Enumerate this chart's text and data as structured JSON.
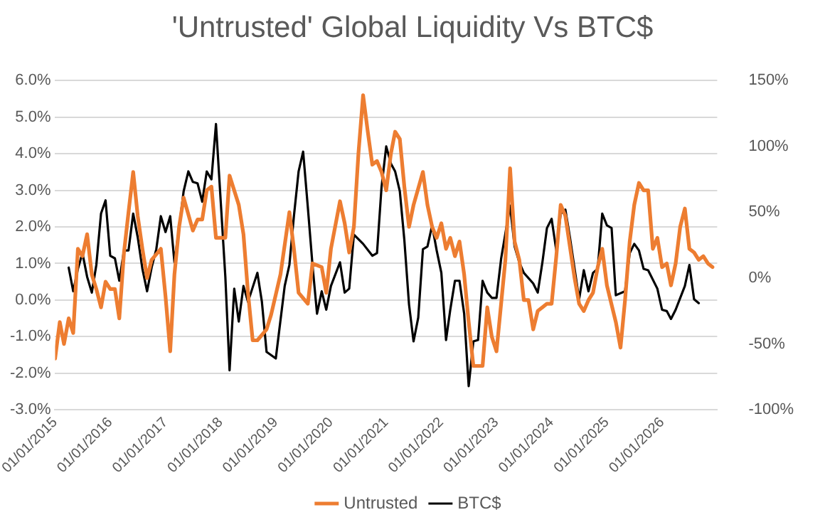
{
  "chart_data": {
    "type": "line",
    "title": "'Untrusted' Global Liquidity Vs BTC$",
    "xlim": [
      "2015-01-01",
      "2027-01-01"
    ],
    "xticks": [
      {
        "value": "2015-01-01",
        "label": "01/01/2015"
      },
      {
        "value": "2016-01-01",
        "label": "01/01/2016"
      },
      {
        "value": "2017-01-01",
        "label": "01/01/2017"
      },
      {
        "value": "2018-01-01",
        "label": "01/01/2018"
      },
      {
        "value": "2019-01-01",
        "label": "01/01/2019"
      },
      {
        "value": "2020-01-01",
        "label": "01/01/2020"
      },
      {
        "value": "2021-01-01",
        "label": "01/01/2021"
      },
      {
        "value": "2022-01-01",
        "label": "01/01/2022"
      },
      {
        "value": "2023-01-01",
        "label": "01/01/2023"
      },
      {
        "value": "2024-01-01",
        "label": "01/01/2024"
      },
      {
        "value": "2025-01-01",
        "label": "01/01/2025"
      },
      {
        "value": "2026-01-01",
        "label": "01/01/2026"
      }
    ],
    "ylim": [
      -3,
      6
    ],
    "yticks": [
      {
        "value": -3,
        "label": "-3.0%"
      },
      {
        "value": -2,
        "label": "-2.0%"
      },
      {
        "value": -1,
        "label": "-1.0%"
      },
      {
        "value": 0,
        "label": "0.0%"
      },
      {
        "value": 1,
        "label": "1.0%"
      },
      {
        "value": 2,
        "label": "2.0%"
      },
      {
        "value": 3,
        "label": "3.0%"
      },
      {
        "value": 4,
        "label": "4.0%"
      },
      {
        "value": 5,
        "label": "5.0%"
      },
      {
        "value": 6,
        "label": "6.0%"
      }
    ],
    "y2lim": [
      -100,
      150
    ],
    "y2ticks": [
      {
        "value": -100,
        "label": "-100%"
      },
      {
        "value": -50,
        "label": "-50%"
      },
      {
        "value": 0,
        "label": "0%"
      },
      {
        "value": 50,
        "label": "50%"
      },
      {
        "value": 100,
        "label": "100%"
      },
      {
        "value": 150,
        "label": "150%"
      }
    ],
    "grid": "y",
    "legend": "bottom",
    "marker": "none",
    "line_style": "solid",
    "series": [
      {
        "name": "Untrusted",
        "color": "#ed7d31",
        "x": [
          "2015-01",
          "2015-02",
          "2015-03",
          "2015-04",
          "2015-05",
          "2015-06",
          "2015-07",
          "2015-08",
          "2015-09",
          "2015-10",
          "2015-11",
          "2015-12",
          "2016-01",
          "2016-02",
          "2016-03",
          "2016-04",
          "2016-05",
          "2016-06",
          "2016-07",
          "2016-08",
          "2016-09",
          "2016-10",
          "2016-12",
          "2017-01",
          "2017-02",
          "2017-03",
          "2017-04",
          "2017-05",
          "2017-07",
          "2017-08",
          "2017-09",
          "2017-10",
          "2017-11",
          "2017-12",
          "2018-02",
          "2018-03",
          "2018-05",
          "2018-06",
          "2018-07",
          "2018-08",
          "2018-09",
          "2018-11",
          "2018-12",
          "2019-02",
          "2019-04",
          "2019-05",
          "2019-06",
          "2019-08",
          "2019-09",
          "2019-11",
          "2019-12",
          "2020-01",
          "2020-03",
          "2020-04",
          "2020-05",
          "2020-06",
          "2020-07",
          "2020-08",
          "2020-09",
          "2020-10",
          "2020-11",
          "2020-12",
          "2021-01",
          "2021-02",
          "2021-03",
          "2021-04",
          "2021-05",
          "2021-06",
          "2021-07",
          "2021-09",
          "2021-10",
          "2021-11",
          "2021-12",
          "2022-01",
          "2022-02",
          "2022-03",
          "2022-04",
          "2022-05",
          "2022-06",
          "2022-07",
          "2022-08",
          "2022-10",
          "2022-11",
          "2022-12",
          "2023-01",
          "2023-03",
          "2023-04",
          "2023-05",
          "2023-06",
          "2023-07",
          "2023-08",
          "2023-09",
          "2023-10",
          "2023-12",
          "2024-01",
          "2024-02",
          "2024-03",
          "2024-04",
          "2024-06",
          "2024-07",
          "2024-08",
          "2024-09",
          "2024-10",
          "2024-11",
          "2024-12",
          "2025-01",
          "2025-03",
          "2025-04",
          "2025-05",
          "2025-06",
          "2025-07",
          "2025-08",
          "2025-09",
          "2025-10",
          "2025-11",
          "2025-12",
          "2026-01",
          "2026-02",
          "2026-03",
          "2026-04",
          "2026-05",
          "2026-06",
          "2026-07",
          "2026-08",
          "2026-09",
          "2026-10",
          "2026-11",
          "2026-12"
        ],
        "values": [
          -1.6,
          -0.6,
          -1.2,
          -0.5,
          -0.9,
          1.4,
          1.2,
          1.8,
          0.7,
          0.3,
          -0.2,
          0.5,
          0.3,
          0.3,
          -0.5,
          1.3,
          2.4,
          3.5,
          2.3,
          1.4,
          0.6,
          1.1,
          1.4,
          0.1,
          -1.4,
          0.7,
          2.0,
          2.8,
          1.9,
          2.2,
          2.2,
          3.0,
          3.1,
          1.7,
          1.7,
          3.4,
          2.6,
          1.8,
          0.2,
          -1.1,
          -1.1,
          -0.8,
          -0.4,
          0.7,
          2.4,
          1.4,
          0.2,
          -0.1,
          1.0,
          0.9,
          0.2,
          1.4,
          2.7,
          2.1,
          1.3,
          2.0,
          4.0,
          5.6,
          4.6,
          3.7,
          3.8,
          3.5,
          3.0,
          4.0,
          4.6,
          4.4,
          3.1,
          2.0,
          2.6,
          3.5,
          2.6,
          2.0,
          1.7,
          2.1,
          1.4,
          1.7,
          1.2,
          1.6,
          0.7,
          -0.6,
          -1.8,
          -1.8,
          -0.2,
          -1.0,
          -1.4,
          1.1,
          3.6,
          1.6,
          1.1,
          0.0,
          0.0,
          -0.8,
          -0.3,
          -0.1,
          -0.1,
          1.2,
          2.6,
          2.3,
          0.6,
          -0.1,
          -0.3,
          0.0,
          0.2,
          0.9,
          1.4,
          0.4,
          -0.6,
          -1.3,
          0.0,
          1.6,
          2.6,
          3.2,
          3.0,
          3.0,
          1.4,
          1.7,
          0.9,
          1.0,
          0.4,
          1.0,
          2.0,
          2.5,
          1.4,
          1.3,
          1.1,
          1.2,
          1.0,
          0.9
        ]
      },
      {
        "name": "BTC$",
        "color": "#000000",
        "axis": "y2",
        "x": [
          "2015-04",
          "2015-05",
          "2015-06",
          "2015-07",
          "2015-08",
          "2015-09",
          "2015-10",
          "2015-11",
          "2015-12",
          "2016-01",
          "2016-02",
          "2016-03",
          "2016-04",
          "2016-05",
          "2016-06",
          "2016-07",
          "2016-08",
          "2016-09",
          "2016-10",
          "2016-11",
          "2016-12",
          "2017-01",
          "2017-02",
          "2017-03",
          "2017-04",
          "2017-05",
          "2017-06",
          "2017-07",
          "2017-08",
          "2017-09",
          "2017-10",
          "2017-11",
          "2017-12",
          "2018-01",
          "2018-02",
          "2018-03",
          "2018-04",
          "2018-05",
          "2018-06",
          "2018-07",
          "2018-09",
          "2018-10",
          "2018-11",
          "2019-01",
          "2019-03",
          "2019-04",
          "2019-05",
          "2019-06",
          "2019-07",
          "2019-08",
          "2019-09",
          "2019-10",
          "2019-11",
          "2019-12",
          "2020-01",
          "2020-03",
          "2020-04",
          "2020-05",
          "2020-06",
          "2020-08",
          "2020-10",
          "2020-11",
          "2020-12",
          "2021-01",
          "2021-02",
          "2021-03",
          "2021-04",
          "2021-05",
          "2021-06",
          "2021-07",
          "2021-08",
          "2021-09",
          "2021-10",
          "2021-11",
          "2021-12",
          "2022-01",
          "2022-02",
          "2022-03",
          "2022-04",
          "2022-05",
          "2022-06",
          "2022-07",
          "2022-08",
          "2022-09",
          "2022-10",
          "2022-11",
          "2022-12",
          "2023-01",
          "2023-02",
          "2023-04",
          "2023-05",
          "2023-06",
          "2023-07",
          "2023-09",
          "2023-10",
          "2023-11",
          "2023-12",
          "2024-01",
          "2024-02",
          "2024-03",
          "2024-04",
          "2024-05",
          "2024-07",
          "2024-08",
          "2024-09",
          "2024-10",
          "2024-11",
          "2024-12",
          "2025-01",
          "2025-02",
          "2025-03",
          "2025-05",
          "2025-06",
          "2025-07",
          "2025-08",
          "2025-09",
          "2025-10",
          "2025-12",
          "2026-01",
          "2026-02",
          "2026-03",
          "2026-04",
          "2026-06",
          "2026-07",
          "2026-08",
          "2026-09"
        ],
        "values": [
          8,
          -10,
          7,
          19,
          1,
          -11,
          10,
          49,
          59,
          17,
          15,
          -2,
          21,
          21,
          49,
          31,
          7,
          -10,
          8,
          22,
          47,
          35,
          47,
          12,
          38,
          66,
          81,
          73,
          72,
          58,
          81,
          75,
          117,
          59,
          1,
          -70,
          -8,
          -33,
          -6,
          -18,
          4,
          -18,
          -56,
          -61,
          -6,
          10,
          47,
          81,
          96,
          54,
          10,
          -27,
          -10,
          -24,
          -6,
          12,
          -11,
          -8,
          33,
          26,
          17,
          19,
          69,
          100,
          87,
          81,
          66,
          29,
          -20,
          -48,
          -30,
          22,
          24,
          40,
          21,
          4,
          -47,
          -24,
          -2,
          -2,
          -27,
          -82,
          -48,
          -47,
          -2,
          -11,
          -15,
          -15,
          15,
          55,
          24,
          12,
          4,
          -4,
          -11,
          12,
          38,
          45,
          21,
          49,
          52,
          31,
          -16,
          6,
          -10,
          4,
          7,
          49,
          40,
          38,
          -13,
          -10,
          19,
          26,
          21,
          7,
          6,
          -8,
          -24,
          -25,
          -31,
          -24,
          -6,
          10,
          -16,
          -19
        ]
      }
    ]
  }
}
